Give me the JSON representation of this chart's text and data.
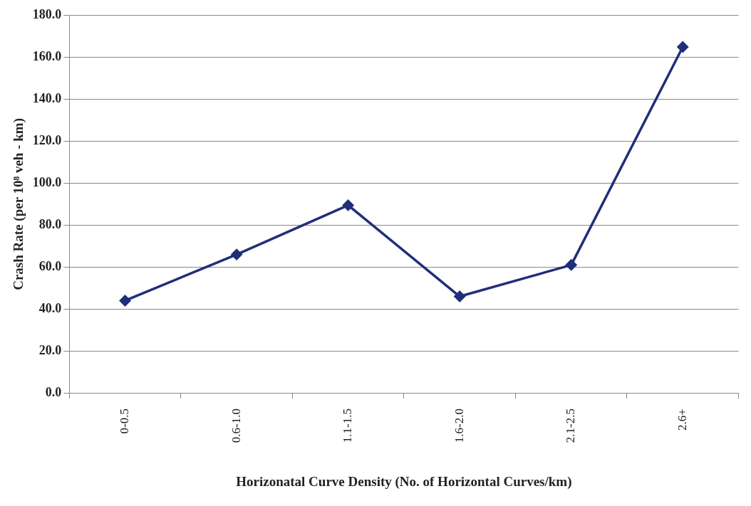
{
  "chart_data": {
    "type": "line",
    "xlabel": "Horizonatal Curve Density (No. of Horizontal Curves/km)",
    "ylabel": "Crash Rate (per 10⁸ veh - km)",
    "categories": [
      "0-0.5",
      "0.6-1.0",
      "1.1-1.5",
      "1.6-2.0",
      "2.1-2.5",
      "2.6+"
    ],
    "series": [
      {
        "color": "#1f2f7a",
        "values": [
          44,
          66,
          89.5,
          46,
          61,
          165
        ]
      }
    ],
    "ylim": [
      0,
      180
    ],
    "yticks": [
      {
        "value": 0,
        "label": "0.0"
      },
      {
        "value": 20,
        "label": "20.0"
      },
      {
        "value": 40,
        "label": "40.0"
      },
      {
        "value": 60,
        "label": "60.0"
      },
      {
        "value": 80,
        "label": "80.0"
      },
      {
        "value": 100,
        "label": "100.0"
      },
      {
        "value": 120,
        "label": "120.0"
      },
      {
        "value": 140,
        "label": "140.0"
      },
      {
        "value": 160,
        "label": "160.0"
      },
      {
        "value": 180,
        "label": "180.0"
      }
    ],
    "grid": "y",
    "legend": false,
    "marker": "diamond",
    "line_style": "solid"
  }
}
